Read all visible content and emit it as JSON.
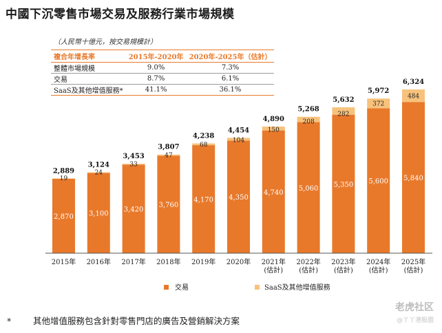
{
  "title": "中國下沉零售市場交易及服務行業市場規模",
  "unit_note": "（人民幣十億元，按交易規模計）",
  "cagr_table": {
    "headers": [
      "複合年增長率",
      "2015年-2020年",
      "2020年-2025年（估計）"
    ],
    "rows": [
      [
        "整體市場規模",
        "9.0%",
        "7.3%"
      ],
      [
        "交易",
        "8.7%",
        "6.1%"
      ],
      [
        "SaaS及其他增值服務*",
        "41.1%",
        "36.1%"
      ]
    ]
  },
  "chart_data": {
    "type": "bar",
    "stacked": true,
    "categories": [
      "2015年",
      "2016年",
      "2017年",
      "2018年",
      "2019年",
      "2020年",
      "2021年\n(估計)",
      "2022年\n(估計)",
      "2023年\n(估計)",
      "2024年\n(估計)",
      "2025年\n(估計)"
    ],
    "series": [
      {
        "name": "交易",
        "color": "#e8792b",
        "values": [
          2870,
          3100,
          3420,
          3760,
          4170,
          4350,
          4740,
          5060,
          5350,
          5600,
          5840
        ],
        "labels": [
          "2,870",
          "3,100",
          "3,420",
          "3,760",
          "4,170",
          "4,350",
          "4,740",
          "5,060",
          "5,350",
          "5,600",
          "5,840"
        ]
      },
      {
        "name": "SaaS及其他增值服務",
        "color": "#f7c27c",
        "values": [
          19,
          24,
          33,
          47,
          68,
          104,
          150,
          208,
          282,
          372,
          484
        ],
        "labels": [
          "19",
          "24",
          "33",
          "47",
          "68",
          "104",
          "150",
          "208",
          "282",
          "372",
          "484"
        ]
      }
    ],
    "totals": [
      2889,
      3124,
      3453,
      3807,
      4238,
      4454,
      4890,
      5268,
      5632,
      5972,
      6324
    ],
    "total_labels": [
      "2,889",
      "3,124",
      "3,453",
      "3,807",
      "4,238",
      "4,454",
      "4,890",
      "5,268",
      "5,632",
      "5,972",
      "6,324"
    ],
    "ylim": [
      0,
      6324
    ],
    "legend_position": "bottom"
  },
  "footnote": {
    "marker": "*",
    "text": "其他增值服務包含針對零售門店的廣告及營銷解決方案"
  },
  "watermark": {
    "text": "老虎社区",
    "sub": "@丫丫港股圈"
  }
}
